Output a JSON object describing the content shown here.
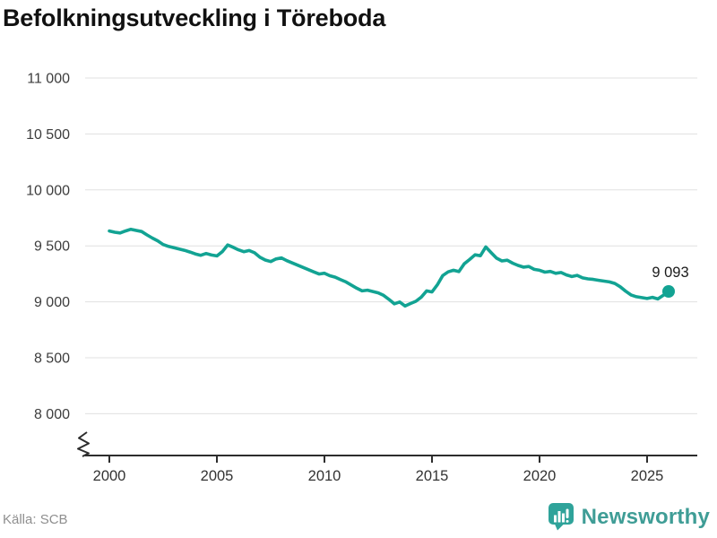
{
  "title": "Befolkningsutveckling i Töreboda",
  "source": "Källa: SCB",
  "branding": {
    "name": "Newsworthy",
    "logo_icon": "bar-chart-speech-bubble-icon"
  },
  "colors": {
    "line": "#12a393",
    "marker": "#12a393",
    "grid": "#e0e0e0",
    "axis": "#2d2d2d",
    "tick_label": "#3d3d3d",
    "annotation": "#1a1a1a",
    "brand_teal": "#3f9d96",
    "bubble_teal": "#2fa39a",
    "source_gray": "#8f8f8f"
  },
  "chart_data": {
    "type": "line",
    "title": "Befolkningsutveckling i Töreboda",
    "series_name": "Befolkning i Töreboda",
    "xlabel": "",
    "ylabel": "",
    "grid": true,
    "legend": false,
    "y_axis_break": true,
    "ylim": [
      8000,
      11000
    ],
    "xlim": [
      2000,
      2026
    ],
    "y_ticks": [
      {
        "value": 11000,
        "label": "11 000"
      },
      {
        "value": 10500,
        "label": "10 500"
      },
      {
        "value": 10000,
        "label": "10 000"
      },
      {
        "value": 9500,
        "label": "9 500"
      },
      {
        "value": 9000,
        "label": "9 000"
      },
      {
        "value": 8500,
        "label": "8 500"
      },
      {
        "value": 8000,
        "label": "8 000"
      }
    ],
    "x_ticks": [
      {
        "value": 2000,
        "label": "2000"
      },
      {
        "value": 2005,
        "label": "2005"
      },
      {
        "value": 2010,
        "label": "2010"
      },
      {
        "value": 2015,
        "label": "2015"
      },
      {
        "value": 2020,
        "label": "2020"
      },
      {
        "value": 2025,
        "label": "2025"
      }
    ],
    "end_label": {
      "value": 9093,
      "label": "9 093"
    },
    "x": [
      2000,
      2000.25,
      2000.5,
      2000.75,
      2001,
      2001.25,
      2001.5,
      2001.75,
      2002,
      2002.25,
      2002.5,
      2002.75,
      2003,
      2003.25,
      2003.5,
      2003.75,
      2004,
      2004.25,
      2004.5,
      2004.75,
      2005,
      2005.25,
      2005.5,
      2005.75,
      2006,
      2006.25,
      2006.5,
      2006.75,
      2007,
      2007.25,
      2007.5,
      2007.75,
      2008,
      2008.25,
      2008.5,
      2008.75,
      2009,
      2009.25,
      2009.5,
      2009.75,
      2010,
      2010.25,
      2010.5,
      2010.75,
      2011,
      2011.25,
      2011.5,
      2011.75,
      2012,
      2012.25,
      2012.5,
      2012.75,
      2013,
      2013.25,
      2013.5,
      2013.75,
      2014,
      2014.25,
      2014.5,
      2014.75,
      2015,
      2015.25,
      2015.5,
      2015.75,
      2016,
      2016.25,
      2016.5,
      2016.75,
      2017,
      2017.25,
      2017.5,
      2017.75,
      2018,
      2018.25,
      2018.5,
      2018.75,
      2019,
      2019.25,
      2019.5,
      2019.75,
      2020,
      2020.25,
      2020.5,
      2020.75,
      2021,
      2021.25,
      2021.5,
      2021.75,
      2022,
      2022.25,
      2022.5,
      2022.75,
      2023,
      2023.25,
      2023.5,
      2023.75,
      2024,
      2024.25,
      2024.5,
      2024.75,
      2025,
      2025.25,
      2025.5,
      2025.75,
      2026
    ],
    "values": [
      9633,
      9622,
      9615,
      9633,
      9648,
      9638,
      9628,
      9598,
      9570,
      9545,
      9512,
      9495,
      9483,
      9472,
      9460,
      9445,
      9428,
      9416,
      9432,
      9418,
      9410,
      9448,
      9508,
      9488,
      9465,
      9448,
      9458,
      9438,
      9398,
      9373,
      9360,
      9383,
      9393,
      9368,
      9348,
      9328,
      9308,
      9288,
      9268,
      9248,
      9256,
      9233,
      9220,
      9198,
      9178,
      9150,
      9122,
      9098,
      9104,
      9092,
      9080,
      9058,
      9022,
      8982,
      8998,
      8962,
      8985,
      9005,
      9042,
      9098,
      9088,
      9152,
      9235,
      9268,
      9282,
      9270,
      9340,
      9378,
      9420,
      9412,
      9490,
      9440,
      9390,
      9365,
      9372,
      9345,
      9325,
      9310,
      9316,
      9290,
      9282,
      9265,
      9272,
      9255,
      9262,
      9240,
      9226,
      9236,
      9214,
      9205,
      9200,
      9192,
      9185,
      9178,
      9164,
      9135,
      9095,
      9062,
      9046,
      9038,
      9030,
      9040,
      9026,
      9058,
      9093
    ]
  }
}
